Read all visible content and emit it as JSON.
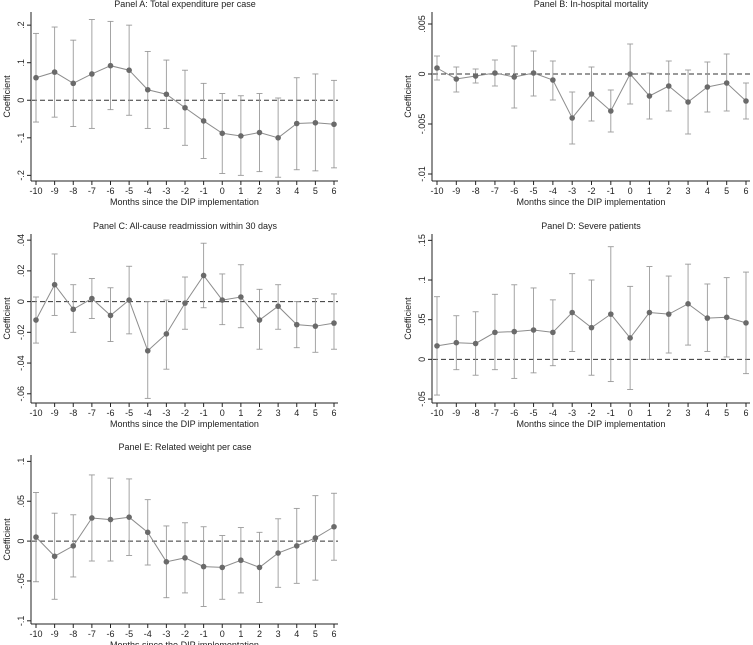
{
  "figure": {
    "xlabel": "Months since the DIP implementation",
    "ylabel": "Coefficient"
  },
  "colors": {
    "line": "#8c8c8c",
    "marker": "#6a6a6a",
    "errorbar": "#9a9a9a",
    "axis": "#222222",
    "zeroline": "#333333"
  },
  "chart_data": [
    {
      "type": "line",
      "title": "Panel A: Total expenditure per case",
      "xlabel": "Months since the DIP implementation",
      "ylabel": "Coefficient",
      "x": [
        -10,
        -9,
        -8,
        -7,
        -6,
        -5,
        -4,
        -3,
        -2,
        -1,
        0,
        1,
        2,
        3,
        4,
        5,
        6
      ],
      "y": [
        0.06,
        0.075,
        0.045,
        0.07,
        0.092,
        0.08,
        0.028,
        0.016,
        -0.02,
        -0.055,
        -0.088,
        -0.095,
        -0.086,
        -0.1,
        -0.062,
        -0.06,
        -0.064
      ],
      "lower": [
        -0.058,
        -0.045,
        -0.07,
        -0.075,
        -0.025,
        -0.04,
        -0.075,
        -0.075,
        -0.12,
        -0.155,
        -0.195,
        -0.2,
        -0.19,
        -0.205,
        -0.185,
        -0.188,
        -0.18
      ],
      "upper": [
        0.178,
        0.195,
        0.16,
        0.215,
        0.21,
        0.2,
        0.13,
        0.107,
        0.08,
        0.045,
        0.018,
        0.012,
        0.018,
        0.006,
        0.06,
        0.07,
        0.053
      ],
      "yticks": [
        ".2",
        ".1",
        "0",
        "-.1",
        "-.2"
      ],
      "ytick_values": [
        0.2,
        0.1,
        0,
        -0.1,
        -0.2
      ],
      "ylim": [
        -0.215,
        0.235
      ],
      "xticks": [
        "-10",
        "-9",
        "-8",
        "-7",
        "-6",
        "-5",
        "-4",
        "-3",
        "-2",
        "-1",
        "0",
        "1",
        "2",
        "3",
        "4",
        "5",
        "6"
      ]
    },
    {
      "type": "line",
      "title": "Panel B: In-hospital mortality",
      "xlabel": "Months since the DIP implementation",
      "ylabel": "Coefficient",
      "x": [
        -10,
        -9,
        -8,
        -7,
        -6,
        -5,
        -4,
        -3,
        -2,
        -1,
        0,
        1,
        2,
        3,
        4,
        5,
        6
      ],
      "y": [
        0.0006,
        -0.0005,
        -0.0002,
        0.0001,
        -0.0003,
        0.0001,
        -0.0006,
        -0.0044,
        -0.002,
        -0.0037,
        0.0,
        -0.0022,
        -0.0012,
        -0.0028,
        -0.0013,
        -0.0009,
        -0.0027
      ],
      "lower": [
        -0.0006,
        -0.0018,
        -0.0009,
        -0.0012,
        -0.0034,
        -0.0022,
        -0.0026,
        -0.007,
        -0.0047,
        -0.0058,
        -0.003,
        -0.0045,
        -0.0037,
        -0.006,
        -0.0038,
        -0.0037,
        -0.0045
      ],
      "upper": [
        0.0018,
        0.0007,
        0.0005,
        0.0014,
        0.0028,
        0.0023,
        0.0013,
        -0.0018,
        0.0007,
        -0.0016,
        0.003,
        0.0001,
        0.0013,
        0.0004,
        0.0012,
        0.002,
        -0.0009
      ],
      "yticks": [
        ".005",
        "0",
        "-.005",
        "-.01"
      ],
      "ytick_values": [
        0.005,
        0,
        -0.005,
        -0.01
      ],
      "ylim": [
        -0.0107,
        0.0062
      ],
      "xticks": [
        "-10",
        "-9",
        "-8",
        "-7",
        "-6",
        "-5",
        "-4",
        "-3",
        "-2",
        "-1",
        "0",
        "1",
        "2",
        "3",
        "4",
        "5",
        "6"
      ]
    },
    {
      "type": "line",
      "title": "Panel C: All-cause readmission within 30 days",
      "xlabel": "Months since the DIP implementation",
      "ylabel": "Coefficient",
      "x": [
        -10,
        -9,
        -8,
        -7,
        -6,
        -5,
        -4,
        -3,
        -2,
        -1,
        0,
        1,
        2,
        3,
        4,
        5,
        6
      ],
      "y": [
        -0.012,
        0.011,
        -0.005,
        0.002,
        -0.009,
        0.001,
        -0.032,
        -0.021,
        -0.001,
        0.017,
        0.001,
        0.003,
        -0.012,
        -0.003,
        -0.015,
        -0.016,
        -0.014
      ],
      "lower": [
        -0.027,
        -0.009,
        -0.02,
        -0.011,
        -0.026,
        -0.021,
        -0.063,
        -0.044,
        -0.018,
        -0.004,
        -0.015,
        -0.017,
        -0.031,
        -0.018,
        -0.03,
        -0.033,
        -0.031
      ],
      "upper": [
        0.003,
        0.031,
        0.011,
        0.015,
        0.009,
        0.023,
        0.0,
        0.001,
        0.016,
        0.038,
        0.018,
        0.024,
        0.008,
        0.011,
        0.0,
        0.002,
        0.005
      ],
      "yticks": [
        ".04",
        ".02",
        "0",
        "-.02",
        "-.04",
        "-.06"
      ],
      "ytick_values": [
        0.04,
        0.02,
        0,
        -0.02,
        -0.04,
        -0.06
      ],
      "ylim": [
        -0.066,
        0.044
      ],
      "xticks": [
        "-10",
        "-9",
        "-8",
        "-7",
        "-6",
        "-5",
        "-4",
        "-3",
        "-2",
        "-1",
        "0",
        "1",
        "2",
        "3",
        "4",
        "5",
        "6"
      ]
    },
    {
      "type": "line",
      "title": "Panel D: Severe patients",
      "xlabel": "Months since the DIP implementation",
      "ylabel": "Coefficient",
      "x": [
        -10,
        -9,
        -8,
        -7,
        -6,
        -5,
        -4,
        -3,
        -2,
        -1,
        0,
        1,
        2,
        3,
        4,
        5,
        6
      ],
      "y": [
        0.017,
        0.021,
        0.02,
        0.034,
        0.035,
        0.037,
        0.034,
        0.059,
        0.04,
        0.057,
        0.027,
        0.059,
        0.057,
        0.07,
        0.052,
        0.053,
        0.046
      ],
      "lower": [
        -0.045,
        -0.013,
        -0.02,
        -0.013,
        -0.024,
        -0.017,
        -0.008,
        0.01,
        -0.02,
        -0.028,
        -0.038,
        0.0,
        0.008,
        0.018,
        0.01,
        0.003,
        -0.018
      ],
      "upper": [
        0.079,
        0.055,
        0.06,
        0.082,
        0.094,
        0.09,
        0.075,
        0.108,
        0.1,
        0.142,
        0.092,
        0.117,
        0.105,
        0.12,
        0.095,
        0.103,
        0.11
      ],
      "yticks": [
        ".15",
        ".1",
        ".05",
        "0",
        "-.05"
      ],
      "ytick_values": [
        0.15,
        0.1,
        0.05,
        0,
        -0.05
      ],
      "ylim": [
        -0.055,
        0.158
      ],
      "xticks": [
        "-10",
        "-9",
        "-8",
        "-7",
        "-6",
        "-5",
        "-4",
        "-3",
        "-2",
        "-1",
        "0",
        "1",
        "2",
        "3",
        "4",
        "5",
        "6"
      ]
    },
    {
      "type": "line",
      "title": "Panel E: Related weight per case",
      "xlabel": "Months since the DIP implementation",
      "ylabel": "Coefficient",
      "x": [
        -10,
        -9,
        -8,
        -7,
        -6,
        -5,
        -4,
        -3,
        -2,
        -1,
        0,
        1,
        2,
        3,
        4,
        5,
        6
      ],
      "y": [
        0.005,
        -0.019,
        -0.006,
        0.029,
        0.027,
        0.03,
        0.011,
        -0.026,
        -0.021,
        -0.032,
        -0.033,
        -0.024,
        -0.033,
        -0.015,
        -0.006,
        0.004,
        0.018
      ],
      "lower": [
        -0.051,
        -0.073,
        -0.045,
        -0.025,
        -0.025,
        -0.018,
        -0.03,
        -0.071,
        -0.065,
        -0.082,
        -0.073,
        -0.065,
        -0.077,
        -0.058,
        -0.053,
        -0.049,
        -0.024
      ],
      "upper": [
        0.061,
        0.035,
        0.033,
        0.083,
        0.079,
        0.078,
        0.052,
        0.019,
        0.023,
        0.018,
        0.007,
        0.017,
        0.011,
        0.028,
        0.041,
        0.057,
        0.06
      ],
      "yticks": [
        ".1",
        ".05",
        "0",
        "-.05",
        "-.1"
      ],
      "ytick_values": [
        0.1,
        0.05,
        0,
        -0.05,
        -0.1
      ],
      "ylim": [
        -0.104,
        0.108
      ],
      "xticks": [
        "-10",
        "-9",
        "-8",
        "-7",
        "-6",
        "-5",
        "-4",
        "-3",
        "-2",
        "-1",
        "0",
        "1",
        "2",
        "3",
        "4",
        "5",
        "6"
      ]
    }
  ]
}
